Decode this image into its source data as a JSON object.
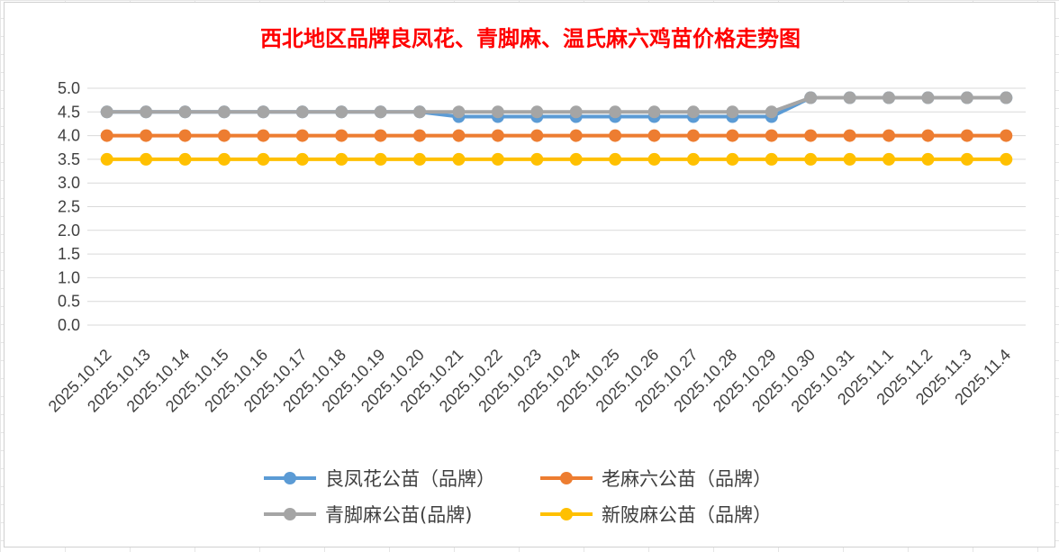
{
  "chart_data": {
    "type": "line",
    "title": "西北地区品牌良凤花、青脚麻、温氏麻六鸡苗价格走势图",
    "categories": [
      "2025.10.12",
      "2025.10.13",
      "2025.10.14",
      "2025.10.15",
      "2025.10.16",
      "2025.10.17",
      "2025.10.18",
      "2025.10.19",
      "2025.10.20",
      "2025.10.21",
      "2025.10.22",
      "2025.10.23",
      "2025.10.24",
      "2025.10.25",
      "2025.10.26",
      "2025.10.27",
      "2025.10.28",
      "2025.10.29",
      "2025.10.30",
      "2025.10.31",
      "2025.11.1",
      "2025.11.2",
      "2025.11.3",
      "2025.11.4"
    ],
    "yticks": [
      "5.0",
      "4.5",
      "4.0",
      "3.5",
      "3.0",
      "2.5",
      "2.0",
      "1.5",
      "1.0",
      "0.5",
      "0.0"
    ],
    "ylim": [
      0,
      5
    ],
    "grid": true,
    "legend_position": "bottom",
    "series": [
      {
        "name": "良凤花公苗（品牌）",
        "color": "#5b9bd5",
        "values": [
          4.5,
          4.5,
          4.5,
          4.5,
          4.5,
          4.5,
          4.5,
          4.5,
          4.5,
          4.4,
          4.4,
          4.4,
          4.4,
          4.4,
          4.4,
          4.4,
          4.4,
          4.4,
          4.8,
          4.8,
          4.8,
          4.8,
          4.8,
          4.8
        ]
      },
      {
        "name": "老麻六公苗（品牌）",
        "color": "#ed7d31",
        "values": [
          4.0,
          4.0,
          4.0,
          4.0,
          4.0,
          4.0,
          4.0,
          4.0,
          4.0,
          4.0,
          4.0,
          4.0,
          4.0,
          4.0,
          4.0,
          4.0,
          4.0,
          4.0,
          4.0,
          4.0,
          4.0,
          4.0,
          4.0,
          4.0
        ]
      },
      {
        "name": "青脚麻公苗(品牌)",
        "color": "#a5a5a5",
        "values": [
          4.5,
          4.5,
          4.5,
          4.5,
          4.5,
          4.5,
          4.5,
          4.5,
          4.5,
          4.5,
          4.5,
          4.5,
          4.5,
          4.5,
          4.5,
          4.5,
          4.5,
          4.5,
          4.8,
          4.8,
          4.8,
          4.8,
          4.8,
          4.8
        ]
      },
      {
        "name": "新陂麻公苗（品牌）",
        "color": "#ffc000",
        "values": [
          3.5,
          3.5,
          3.5,
          3.5,
          3.5,
          3.5,
          3.5,
          3.5,
          3.5,
          3.5,
          3.5,
          3.5,
          3.5,
          3.5,
          3.5,
          3.5,
          3.5,
          3.5,
          3.5,
          3.5,
          3.5,
          3.5,
          3.5,
          3.5
        ]
      }
    ]
  }
}
